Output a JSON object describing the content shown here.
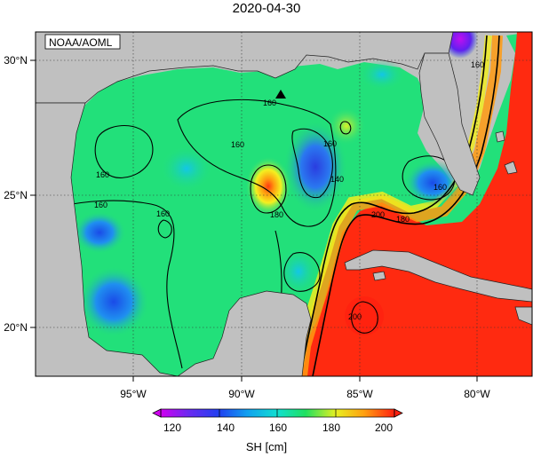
{
  "title": "2020-04-30",
  "credit": "NOAA/AOML",
  "axes": {
    "lon_ticks": [
      "95°W",
      "90°W",
      "85°W",
      "80°W"
    ],
    "lat_ticks": [
      "30°N",
      "25°N",
      "20°N"
    ]
  },
  "contour_labels": [
    "160",
    "160",
    "160",
    "160",
    "160",
    "160",
    "160",
    "180",
    "140",
    "180",
    "200",
    "200",
    "160"
  ],
  "colorbar": {
    "title": "SH [cm]",
    "min": 120,
    "max": 200,
    "ticks": [
      "120",
      "140",
      "160",
      "180",
      "200"
    ]
  },
  "colors": {
    "land": "#c0c0c0",
    "background_field": "#22e07a"
  },
  "marker": "triangle-icon"
}
